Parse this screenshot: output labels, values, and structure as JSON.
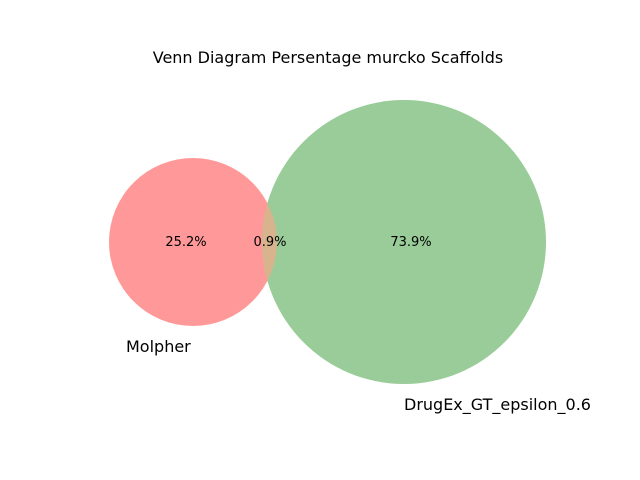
{
  "title": "Venn Diagram Persentage murcko Scaffolds",
  "sets": [
    {
      "name": "Molpher",
      "color": "#ff9999"
    },
    {
      "name": "DrugEx_GT_epsilon_0.6",
      "color": "#99cc99"
    }
  ],
  "overlap_color": "#d8b48e",
  "regions": {
    "only_a": "25.2%",
    "intersection": "0.9%",
    "only_b": "73.9%"
  }
}
